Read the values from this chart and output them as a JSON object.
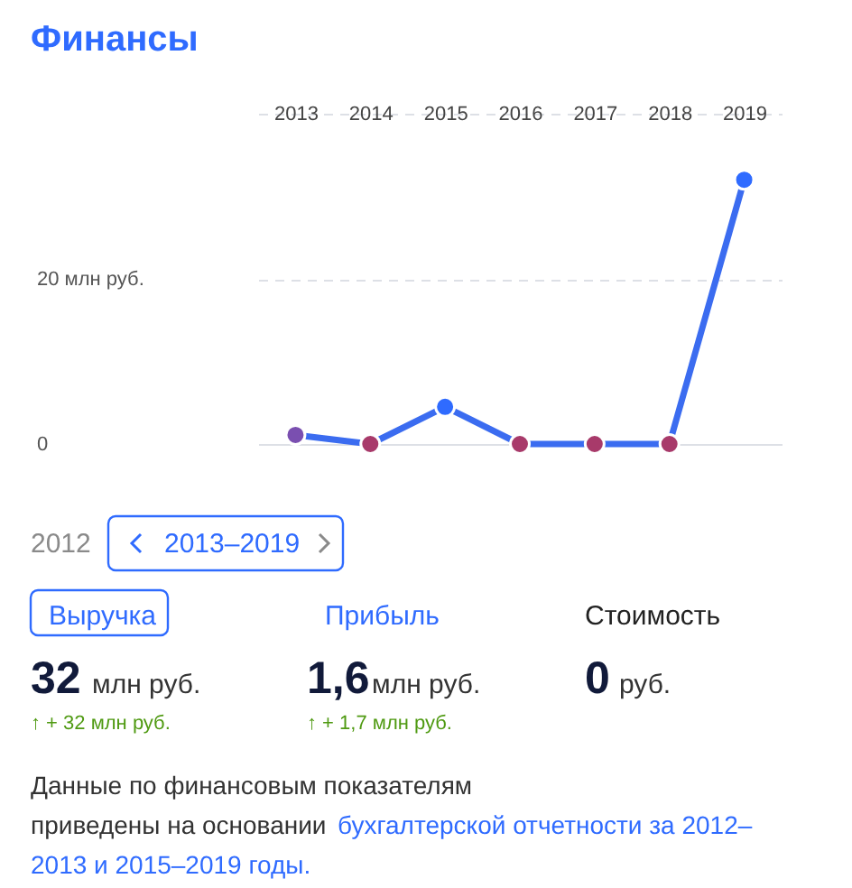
{
  "chart_data": {
    "type": "line",
    "title": "Финансы",
    "categories": [
      "2013",
      "2014",
      "2015",
      "2016",
      "2017",
      "2018",
      "2019"
    ],
    "series": [
      {
        "color": "#3b6cf0",
        "values": [
          1.1,
          0,
          4.5,
          0,
          0,
          0,
          32
        ],
        "colors": [
          "#7a4fb0",
          "#a83a6a",
          "#2f6bff",
          "#a83a6a",
          "#a83a6a",
          "#a83a6a",
          "#2f6bff"
        ]
      }
    ],
    "ylim": [
      0,
      40
    ],
    "yticks": [
      0,
      {
        "value": 20,
        "label": "20 млн руб."
      },
      {
        "value": 40,
        "label": null
      }
    ],
    "grid": "y",
    "marker": "circle",
    "line_style": "solid",
    "annotations": [
      "2012",
      "2013–2019",
      "Выручка",
      "Прибыль",
      "Стоимость",
      "32",
      "млн руб.",
      "1,6",
      "млн руб.",
      "0",
      "руб.",
      "↑ + 32 млн руб.",
      "↑ + 1,7 млн руб.",
      "Данные по финансовым показателям",
      "приведены на основании",
      "бухгалтерской отчетности за 2012–",
      "2013 и 2015–2019 годы."
    ]
  }
}
